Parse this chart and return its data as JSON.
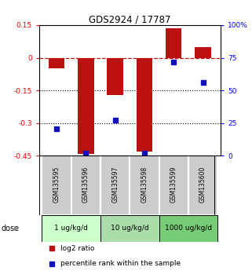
{
  "title": "GDS2924 / 17787",
  "samples": [
    "GSM135595",
    "GSM135596",
    "GSM135597",
    "GSM135598",
    "GSM135599",
    "GSM135600"
  ],
  "log2_ratio": [
    -0.05,
    -0.44,
    -0.17,
    -0.43,
    0.135,
    0.05
  ],
  "percentile_rank": [
    20.5,
    2.0,
    27.0,
    2.0,
    72.0,
    56.0
  ],
  "ylim_left": [
    -0.45,
    0.15
  ],
  "ylim_right": [
    0,
    100
  ],
  "yticks_left": [
    0.15,
    0,
    -0.15,
    -0.3,
    -0.45
  ],
  "yticks_right": [
    100,
    75,
    50,
    25,
    0
  ],
  "hlines": [
    -0.15,
    -0.3
  ],
  "bar_color": "#BB1111",
  "dot_color": "#1111BB",
  "dose_groups": [
    {
      "label": "1 ug/kg/d",
      "samples": [
        0,
        1
      ],
      "color": "#ccffcc"
    },
    {
      "label": "10 ug/kg/d",
      "samples": [
        2,
        3
      ],
      "color": "#aaddaa"
    },
    {
      "label": "1000 ug/kg/d",
      "samples": [
        4,
        5
      ],
      "color": "#77cc77"
    }
  ],
  "dose_label": "dose",
  "legend_log2": "log2 ratio",
  "legend_pct": "percentile rank within the sample",
  "bar_width": 0.55
}
